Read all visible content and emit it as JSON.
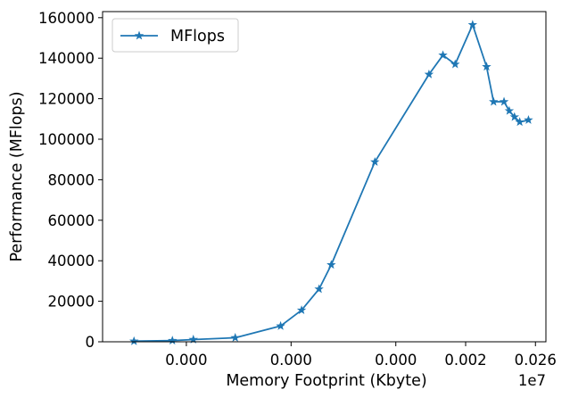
{
  "chart_data": {
    "type": "line",
    "xlabel": "Memory Footprint (Kbyte)",
    "ylabel": "Performance (MFlops)",
    "x_offset_label": "1e7",
    "x_scale": "log",
    "grid": false,
    "legend_position": "top-left",
    "x_tick_labels": [
      "0.000",
      "0.000",
      "0.000",
      "0.002",
      "0.026"
    ],
    "y_ticks": [
      0,
      20000,
      40000,
      60000,
      80000,
      100000,
      120000,
      140000,
      160000
    ],
    "y_tick_labels": [
      "0",
      "20000",
      "40000",
      "60000",
      "80000",
      "100000",
      "120000",
      "140000",
      "160000"
    ],
    "ylim": [
      0,
      163000
    ],
    "series": [
      {
        "name": "MFlops",
        "color": "#1f77b4",
        "marker": "star",
        "points": [
          {
            "x": -7.5,
            "y": 300
          },
          {
            "x": -6.4,
            "y": 600
          },
          {
            "x": -5.8,
            "y": 1100
          },
          {
            "x": -4.6,
            "y": 2000
          },
          {
            "x": -3.3,
            "y": 7800
          },
          {
            "x": -2.7,
            "y": 15600
          },
          {
            "x": -2.2,
            "y": 26000
          },
          {
            "x": -1.85,
            "y": 38000
          },
          {
            "x": -0.6,
            "y": 88800
          },
          {
            "x": 0.95,
            "y": 132000
          },
          {
            "x": 1.35,
            "y": 141500
          },
          {
            "x": 1.7,
            "y": 137000
          },
          {
            "x": 2.2,
            "y": 156500
          },
          {
            "x": 2.6,
            "y": 135800
          },
          {
            "x": 2.8,
            "y": 118500
          },
          {
            "x": 3.1,
            "y": 118500
          },
          {
            "x": 3.25,
            "y": 114000
          },
          {
            "x": 3.4,
            "y": 111000
          },
          {
            "x": 3.55,
            "y": 108500
          },
          {
            "x": 3.8,
            "y": 109500
          }
        ]
      }
    ]
  }
}
